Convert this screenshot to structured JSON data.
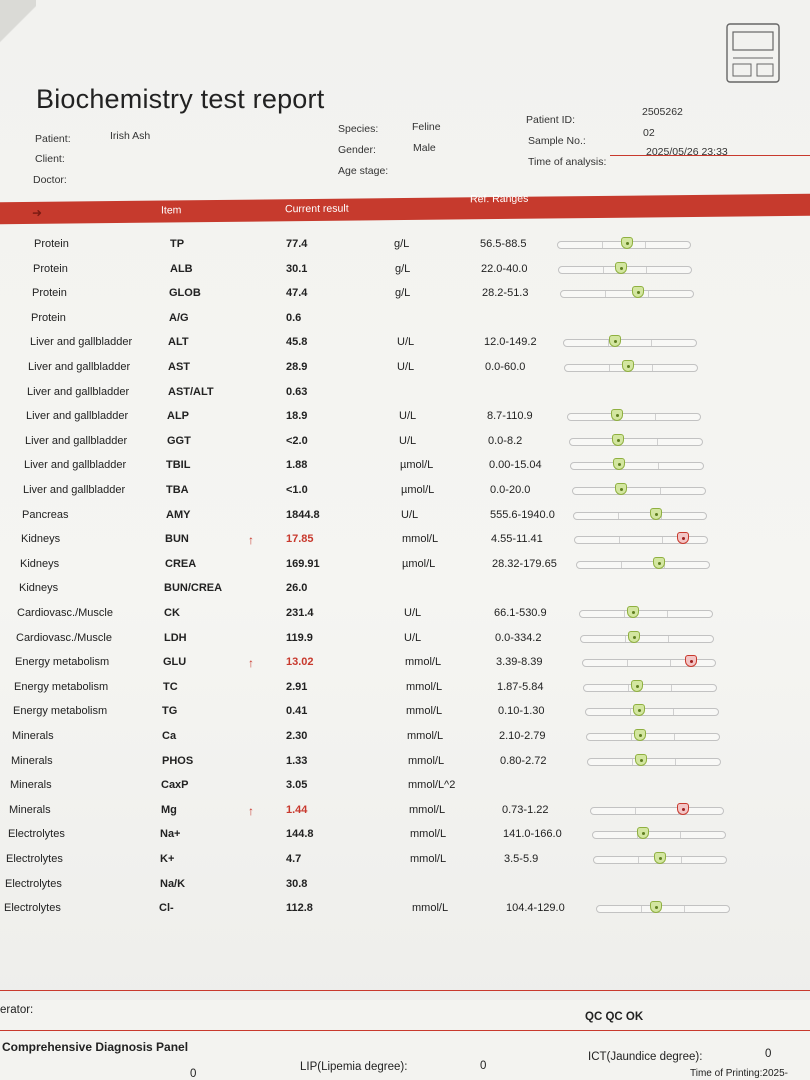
{
  "report": {
    "title": "Biochemistry test report",
    "patient_label": "Patient:",
    "patient_value": "Irish Ash",
    "client_label": "Client:",
    "client_value": "",
    "doctor_label": "Doctor:",
    "doctor_value": "",
    "species_label": "Species:",
    "species_value": "Feline",
    "gender_label": "Gender:",
    "gender_value": "Male",
    "age_label": "Age stage:",
    "age_value": "",
    "patient_id_label": "Patient ID:",
    "patient_id_value": "2505262",
    "sample_label": "Sample No.:",
    "sample_value": "02",
    "time_label": "Time of analysis:",
    "time_value": "2025/05/26 23:33"
  },
  "table": {
    "headers": {
      "item": "Item",
      "result": "Current result",
      "ref": "Ref. Ranges"
    },
    "rows": [
      {
        "category": "Protein",
        "item": "TP",
        "result": "77.4",
        "flag": "",
        "unit": "g/L",
        "ref": "56.5-88.5",
        "marker_pos": 0.52,
        "high": false
      },
      {
        "category": "Protein",
        "item": "ALB",
        "result": "30.1",
        "flag": "",
        "unit": "g/L",
        "ref": "22.0-40.0",
        "marker_pos": 0.47,
        "high": false
      },
      {
        "category": "Protein",
        "item": "GLOB",
        "result": "47.4",
        "flag": "",
        "unit": "g/L",
        "ref": "28.2-51.3",
        "marker_pos": 0.58,
        "high": false
      },
      {
        "category": "Protein",
        "item": "A/G",
        "result": "0.6",
        "flag": "",
        "unit": "",
        "ref": "",
        "marker_pos": null,
        "high": false
      },
      {
        "category": "Liver and gallbladder",
        "item": "ALT",
        "result": "45.8",
        "flag": "",
        "unit": "U/L",
        "ref": "12.0-149.2",
        "marker_pos": 0.39,
        "high": false
      },
      {
        "category": "Liver and gallbladder",
        "item": "AST",
        "result": "28.9",
        "flag": "",
        "unit": "U/L",
        "ref": "0.0-60.0",
        "marker_pos": 0.48,
        "high": false
      },
      {
        "category": "Liver and gallbladder",
        "item": "AST/ALT",
        "result": "0.63",
        "flag": "",
        "unit": "",
        "ref": "",
        "marker_pos": null,
        "high": false
      },
      {
        "category": "Liver and gallbladder",
        "item": "ALP",
        "result": "18.9",
        "flag": "",
        "unit": "U/L",
        "ref": "8.7-110.9",
        "marker_pos": 0.37,
        "high": false
      },
      {
        "category": "Liver and gallbladder",
        "item": "GGT",
        "result": "<2.0",
        "flag": "",
        "unit": "U/L",
        "ref": "0.0-8.2",
        "marker_pos": 0.36,
        "high": false
      },
      {
        "category": "Liver and gallbladder",
        "item": "TBIL",
        "result": "1.88",
        "flag": "",
        "unit": "µmol/L",
        "ref": "0.00-15.04",
        "marker_pos": 0.36,
        "high": false
      },
      {
        "category": "Liver and gallbladder",
        "item": "TBA",
        "result": "<1.0",
        "flag": "",
        "unit": "µmol/L",
        "ref": "0.0-20.0",
        "marker_pos": 0.36,
        "high": false
      },
      {
        "category": "Pancreas",
        "item": "AMY",
        "result": "1844.8",
        "flag": "",
        "unit": "U/L",
        "ref": "555.6-1940.0",
        "marker_pos": 0.62,
        "high": false
      },
      {
        "category": "Kidneys",
        "item": "BUN",
        "result": "17.85",
        "flag": "↑",
        "unit": "mmol/L",
        "ref": "4.55-11.41",
        "marker_pos": 0.82,
        "high": true
      },
      {
        "category": "Kidneys",
        "item": "CREA",
        "result": "169.91",
        "flag": "",
        "unit": "µmol/L",
        "ref": "28.32-179.65",
        "marker_pos": 0.62,
        "high": false
      },
      {
        "category": "Kidneys",
        "item": "BUN/CREA",
        "result": "26.0",
        "flag": "",
        "unit": "",
        "ref": "",
        "marker_pos": null,
        "high": false
      },
      {
        "category": "Cardiovasc./Muscle",
        "item": "CK",
        "result": "231.4",
        "flag": "",
        "unit": "U/L",
        "ref": "66.1-530.9",
        "marker_pos": 0.4,
        "high": false
      },
      {
        "category": "Cardiovasc./Muscle",
        "item": "LDH",
        "result": "119.9",
        "flag": "",
        "unit": "U/L",
        "ref": "0.0-334.2",
        "marker_pos": 0.4,
        "high": false
      },
      {
        "category": "Energy metabolism",
        "item": "GLU",
        "result": "13.02",
        "flag": "↑",
        "unit": "mmol/L",
        "ref": "3.39-8.39",
        "marker_pos": 0.82,
        "high": true
      },
      {
        "category": "Energy metabolism",
        "item": "TC",
        "result": "2.91",
        "flag": "",
        "unit": "mmol/L",
        "ref": "1.87-5.84",
        "marker_pos": 0.4,
        "high": false
      },
      {
        "category": "Energy metabolism",
        "item": "TG",
        "result": "0.41",
        "flag": "",
        "unit": "mmol/L",
        "ref": "0.10-1.30",
        "marker_pos": 0.4,
        "high": false
      },
      {
        "category": "Minerals",
        "item": "Ca",
        "result": "2.30",
        "flag": "",
        "unit": "mmol/L",
        "ref": "2.10-2.79",
        "marker_pos": 0.4,
        "high": false
      },
      {
        "category": "Minerals",
        "item": "PHOS",
        "result": "1.33",
        "flag": "",
        "unit": "mmol/L",
        "ref": "0.80-2.72",
        "marker_pos": 0.4,
        "high": false
      },
      {
        "category": "Minerals",
        "item": "CaxP",
        "result": "3.05",
        "flag": "",
        "unit": "mmol/L^2",
        "ref": "",
        "marker_pos": null,
        "high": false
      },
      {
        "category": "Minerals",
        "item": "Mg",
        "result": "1.44",
        "flag": "↑",
        "unit": "mmol/L",
        "ref": "0.73-1.22",
        "marker_pos": 0.7,
        "high": true
      },
      {
        "category": "Electrolytes",
        "item": "Na+",
        "result": "144.8",
        "flag": "",
        "unit": "mmol/L",
        "ref": "141.0-166.0",
        "marker_pos": 0.38,
        "high": false
      },
      {
        "category": "Electrolytes",
        "item": "K+",
        "result": "4.7",
        "flag": "",
        "unit": "mmol/L",
        "ref": "3.5-5.9",
        "marker_pos": 0.5,
        "high": false
      },
      {
        "category": "Electrolytes",
        "item": "Na/K",
        "result": "30.8",
        "flag": "",
        "unit": "",
        "ref": "",
        "marker_pos": null,
        "high": false
      },
      {
        "category": "Electrolytes",
        "item": "Cl-",
        "result": "112.8",
        "flag": "",
        "unit": "mmol/L",
        "ref": "104.4-129.0",
        "marker_pos": 0.45,
        "high": false
      }
    ]
  },
  "footer": {
    "operator_label": "erator:",
    "qc": "QC QC OK",
    "panel": "Comprehensive Diagnosis Panel",
    "lip_label": "LIP(Lipemia degree):",
    "lip_value": "0",
    "ict_label": "ICT(Jaundice degree):",
    "ict_value": "0",
    "left_value": "0",
    "printing_label": "Time of Printing:2025-"
  },
  "colors": {
    "accent": "#c63a2d",
    "normal_marker": "#d3e6a0",
    "high_marker": "#f3c5c5"
  }
}
